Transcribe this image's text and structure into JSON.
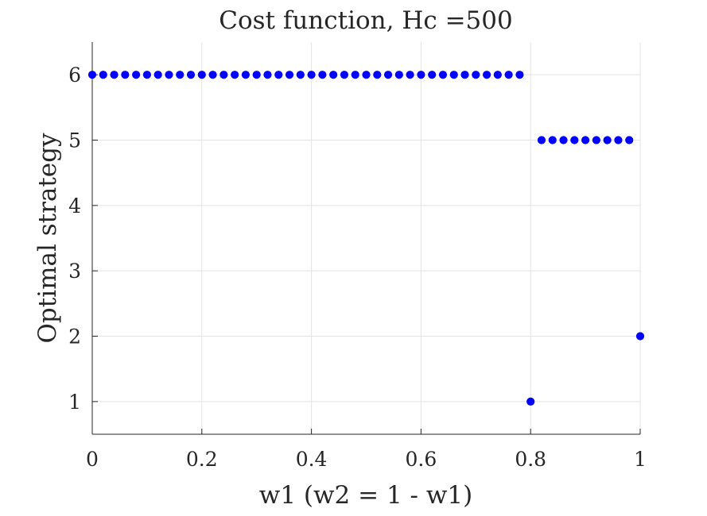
{
  "chart_data": {
    "type": "scatter",
    "title": "Cost function, Hc =500",
    "xlabel": "w1 (w2 = 1 - w1)",
    "ylabel": "Optimal strategy",
    "xlim": [
      0,
      1
    ],
    "ylim": [
      0.5,
      6.5
    ],
    "xticks": [
      0,
      0.2,
      0.4,
      0.6,
      0.8,
      1
    ],
    "xtick_labels": [
      "0",
      "0.2",
      "0.4",
      "0.6",
      "0.8",
      "1"
    ],
    "yticks": [
      1,
      2,
      3,
      4,
      5,
      6
    ],
    "ytick_labels": [
      "1",
      "2",
      "3",
      "4",
      "5",
      "6"
    ],
    "grid": true,
    "marker_color": "#0000ff",
    "series": [
      {
        "x": [
          0,
          0.02,
          0.04,
          0.06,
          0.08,
          0.1,
          0.12,
          0.14,
          0.16,
          0.18,
          0.2,
          0.22,
          0.24,
          0.26,
          0.28,
          0.3,
          0.32,
          0.34,
          0.36,
          0.38,
          0.4,
          0.42,
          0.44,
          0.46,
          0.48,
          0.5,
          0.52,
          0.54,
          0.56,
          0.58,
          0.6,
          0.62,
          0.64,
          0.66,
          0.68,
          0.7,
          0.72,
          0.74,
          0.76,
          0.78,
          0.8,
          0.82,
          0.84,
          0.86,
          0.88,
          0.9,
          0.92,
          0.94,
          0.96,
          0.98,
          1
        ],
        "y": [
          6,
          6,
          6,
          6,
          6,
          6,
          6,
          6,
          6,
          6,
          6,
          6,
          6,
          6,
          6,
          6,
          6,
          6,
          6,
          6,
          6,
          6,
          6,
          6,
          6,
          6,
          6,
          6,
          6,
          6,
          6,
          6,
          6,
          6,
          6,
          6,
          6,
          6,
          6,
          6,
          1,
          5,
          5,
          5,
          5,
          5,
          5,
          5,
          5,
          5,
          2
        ]
      }
    ]
  }
}
